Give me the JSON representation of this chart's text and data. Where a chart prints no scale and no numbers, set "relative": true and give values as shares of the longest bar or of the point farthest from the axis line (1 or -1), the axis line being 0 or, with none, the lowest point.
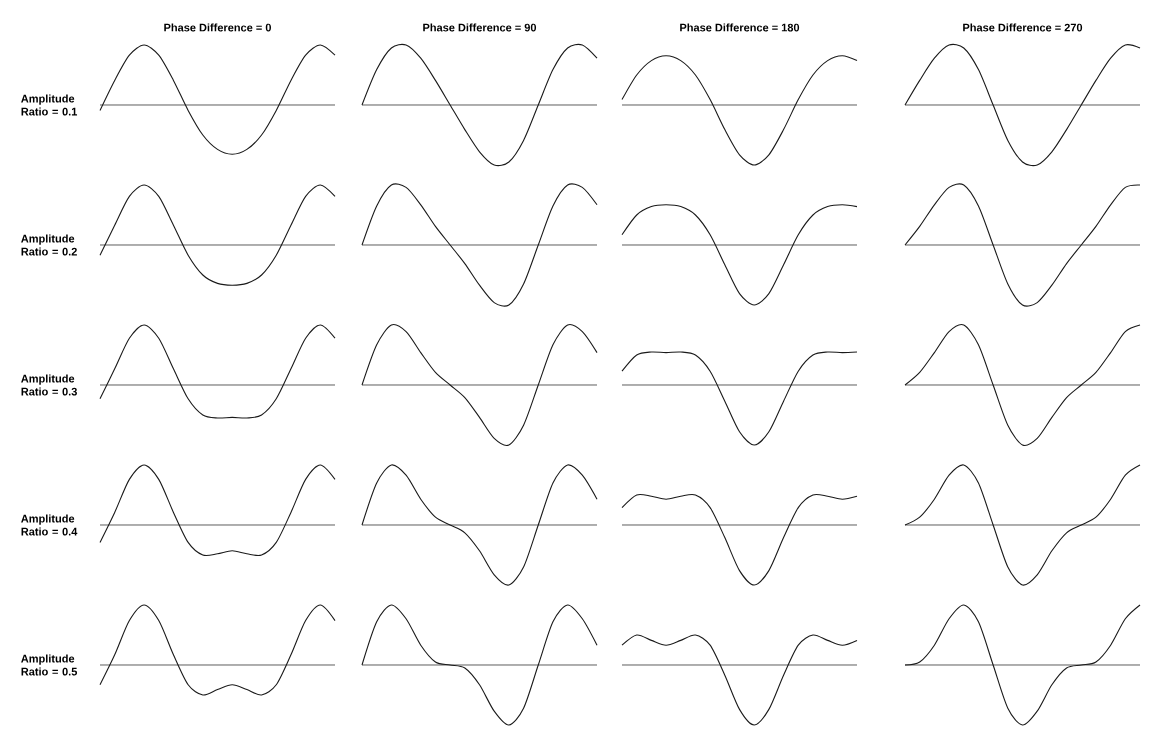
{
  "chart_data": [
    {
      "type": "line",
      "relative": true,
      "color": "#1a1a1a",
      "title": "Phase Difference = 0",
      "ylabel": "Amplitude Ratio = 0.1",
      "categories": [
        null,
        null,
        null,
        null,
        null,
        null,
        null,
        null,
        null,
        null,
        null,
        null,
        null,
        null,
        null,
        null,
        null
      ],
      "values": [
        -0.09,
        0.41,
        0.83,
        1,
        0.83,
        0.41,
        -0.09,
        -0.5,
        -0.74,
        -0.82,
        -0.74,
        -0.5,
        -0.09,
        0.41,
        0.83,
        1,
        0.83
      ]
    },
    {
      "type": "line",
      "relative": true,
      "color": "#1a1a1a",
      "title": "Phase Difference = 90",
      "categories": [
        null,
        null,
        null,
        null,
        null,
        null,
        null,
        null,
        null,
        null,
        null,
        null,
        null,
        null,
        null,
        null,
        null
      ],
      "values": [
        0,
        0.59,
        0.95,
        1,
        0.78,
        0.41,
        0,
        -0.41,
        -0.78,
        -1,
        -0.95,
        -0.59,
        0,
        0.59,
        0.95,
        1,
        0.78
      ]
    },
    {
      "type": "line",
      "relative": true,
      "color": "#1a1a1a",
      "title": "Phase Difference = 180",
      "categories": [
        null,
        null,
        null,
        null,
        null,
        null,
        null,
        null,
        null,
        null,
        null,
        null,
        null,
        null,
        null,
        null,
        null
      ],
      "values": [
        0.09,
        0.5,
        0.74,
        0.82,
        0.74,
        0.5,
        0.09,
        -0.41,
        -0.83,
        -1,
        -0.83,
        -0.41,
        0.09,
        0.5,
        0.74,
        0.82,
        0.74
      ]
    },
    {
      "type": "line",
      "relative": true,
      "color": "#1a1a1a",
      "title": "Phase Difference = 270",
      "categories": [
        null,
        null,
        null,
        null,
        null,
        null,
        null,
        null,
        null,
        null,
        null,
        null,
        null,
        null,
        null,
        null,
        null
      ],
      "values": [
        0,
        0.41,
        0.78,
        1,
        0.95,
        0.59,
        0,
        -0.59,
        -0.95,
        -1,
        -0.78,
        -0.41,
        0,
        0.41,
        0.78,
        1,
        0.95
      ]
    },
    {
      "type": "line",
      "relative": true,
      "color": "#1a1a1a",
      "ylabel": "Amplitude Ratio = 0.2",
      "categories": [
        null,
        null,
        null,
        null,
        null,
        null,
        null,
        null,
        null,
        null,
        null,
        null,
        null,
        null,
        null,
        null,
        null
      ],
      "values": [
        -0.17,
        0.33,
        0.81,
        1,
        0.81,
        0.33,
        -0.17,
        -0.5,
        -0.64,
        -0.67,
        -0.64,
        -0.5,
        -0.17,
        0.33,
        0.81,
        1,
        0.81
      ]
    },
    {
      "type": "line",
      "relative": true,
      "color": "#1a1a1a",
      "categories": [
        null,
        null,
        null,
        null,
        null,
        null,
        null,
        null,
        null,
        null,
        null,
        null,
        null,
        null,
        null,
        null,
        null
      ],
      "values": [
        0,
        0.65,
        1,
        0.96,
        0.67,
        0.31,
        0,
        -0.31,
        -0.67,
        -0.96,
        -1,
        -0.65,
        0,
        0.65,
        1,
        0.96,
        0.67
      ]
    },
    {
      "type": "line",
      "relative": true,
      "color": "#1a1a1a",
      "categories": [
        null,
        null,
        null,
        null,
        null,
        null,
        null,
        null,
        null,
        null,
        null,
        null,
        null,
        null,
        null,
        null,
        null
      ],
      "values": [
        0.17,
        0.5,
        0.64,
        0.67,
        0.64,
        0.5,
        0.17,
        -0.33,
        -0.81,
        -1,
        -0.81,
        -0.33,
        0.17,
        0.5,
        0.64,
        0.67,
        0.64
      ]
    },
    {
      "type": "line",
      "relative": true,
      "color": "#1a1a1a",
      "categories": [
        null,
        null,
        null,
        null,
        null,
        null,
        null,
        null,
        null,
        null,
        null,
        null,
        null,
        null,
        null,
        null,
        null
      ],
      "values": [
        0,
        0.31,
        0.67,
        0.96,
        1,
        0.65,
        0,
        -0.65,
        -1,
        -0.96,
        -0.67,
        -0.31,
        0,
        0.31,
        0.67,
        0.96,
        1
      ]
    },
    {
      "type": "line",
      "relative": true,
      "color": "#1a1a1a",
      "ylabel": "Amplitude Ratio = 0.3",
      "categories": [
        null,
        null,
        null,
        null,
        null,
        null,
        null,
        null,
        null,
        null,
        null,
        null,
        null,
        null,
        null,
        null,
        null
      ],
      "values": [
        -0.23,
        0.27,
        0.78,
        1,
        0.78,
        0.27,
        -0.23,
        -0.5,
        -0.55,
        -0.54,
        -0.55,
        -0.5,
        -0.23,
        0.27,
        0.78,
        1,
        0.78
      ]
    },
    {
      "type": "line",
      "relative": true,
      "color": "#1a1a1a",
      "categories": [
        null,
        null,
        null,
        null,
        null,
        null,
        null,
        null,
        null,
        null,
        null,
        null,
        null,
        null,
        null,
        null,
        null
      ],
      "values": [
        0,
        0.67,
        1,
        0.89,
        0.54,
        0.21,
        0,
        -0.21,
        -0.54,
        -0.89,
        -1,
        -0.67,
        0,
        0.67,
        1,
        0.89,
        0.54
      ]
    },
    {
      "type": "line",
      "relative": true,
      "color": "#1a1a1a",
      "categories": [
        null,
        null,
        null,
        null,
        null,
        null,
        null,
        null,
        null,
        null,
        null,
        null,
        null,
        null,
        null,
        null,
        null
      ],
      "values": [
        0.23,
        0.5,
        0.55,
        0.54,
        0.55,
        0.5,
        0.23,
        -0.27,
        -0.78,
        -1,
        -0.78,
        -0.27,
        0.23,
        0.5,
        0.55,
        0.54,
        0.55
      ]
    },
    {
      "type": "line",
      "relative": true,
      "color": "#1a1a1a",
      "categories": [
        null,
        null,
        null,
        null,
        null,
        null,
        null,
        null,
        null,
        null,
        null,
        null,
        null,
        null,
        null,
        null,
        null
      ],
      "values": [
        0,
        0.21,
        0.54,
        0.89,
        1,
        0.67,
        0,
        -0.67,
        -1,
        -0.89,
        -0.54,
        -0.21,
        0,
        0.21,
        0.54,
        0.89,
        1
      ]
    },
    {
      "type": "line",
      "relative": true,
      "color": "#1a1a1a",
      "ylabel": "Amplitude Ratio = 0.4",
      "categories": [
        null,
        null,
        null,
        null,
        null,
        null,
        null,
        null,
        null,
        null,
        null,
        null,
        null,
        null,
        null,
        null,
        null
      ],
      "values": [
        -0.29,
        0.21,
        0.76,
        1,
        0.76,
        0.21,
        -0.29,
        -0.5,
        -0.48,
        -0.43,
        -0.48,
        -0.5,
        -0.29,
        0.21,
        0.76,
        1,
        0.76
      ]
    },
    {
      "type": "line",
      "relative": true,
      "color": "#1a1a1a",
      "categories": [
        null,
        null,
        null,
        null,
        null,
        null,
        null,
        null,
        null,
        null,
        null,
        null,
        null,
        null,
        null,
        null,
        null
      ],
      "values": [
        0,
        0.7,
        1,
        0.83,
        0.43,
        0.13,
        0,
        -0.13,
        -0.43,
        -0.83,
        -1,
        -0.7,
        0,
        0.7,
        1,
        0.83,
        0.43
      ]
    },
    {
      "type": "line",
      "relative": true,
      "color": "#1a1a1a",
      "categories": [
        null,
        null,
        null,
        null,
        null,
        null,
        null,
        null,
        null,
        null,
        null,
        null,
        null,
        null,
        null,
        null,
        null
      ],
      "values": [
        0.29,
        0.5,
        0.48,
        0.43,
        0.48,
        0.5,
        0.29,
        -0.21,
        -0.76,
        -1,
        -0.76,
        -0.21,
        0.29,
        0.5,
        0.48,
        0.43,
        0.48
      ]
    },
    {
      "type": "line",
      "relative": true,
      "color": "#1a1a1a",
      "categories": [
        null,
        null,
        null,
        null,
        null,
        null,
        null,
        null,
        null,
        null,
        null,
        null,
        null,
        null,
        null,
        null,
        null
      ],
      "values": [
        0,
        0.13,
        0.43,
        0.83,
        1,
        0.7,
        0,
        -0.7,
        -1,
        -0.83,
        -0.43,
        -0.13,
        0,
        0.13,
        0.43,
        0.83,
        1
      ]
    },
    {
      "type": "line",
      "relative": true,
      "color": "#1a1a1a",
      "ylabel": "Amplitude Ratio = 0.5",
      "categories": [
        null,
        null,
        null,
        null,
        null,
        null,
        null,
        null,
        null,
        null,
        null,
        null,
        null,
        null,
        null,
        null,
        null
      ],
      "values": [
        -0.33,
        0.17,
        0.74,
        1,
        0.74,
        0.17,
        -0.33,
        -0.5,
        -0.41,
        -0.33,
        -0.41,
        -0.5,
        -0.33,
        0.17,
        0.74,
        1,
        0.74
      ]
    },
    {
      "type": "line",
      "relative": true,
      "color": "#1a1a1a",
      "categories": [
        null,
        null,
        null,
        null,
        null,
        null,
        null,
        null,
        null,
        null,
        null,
        null,
        null,
        null,
        null,
        null,
        null
      ],
      "values": [
        0,
        0.72,
        1,
        0.77,
        0.33,
        0.05,
        0,
        -0.05,
        -0.33,
        -0.77,
        -1,
        -0.72,
        0,
        0.72,
        1,
        0.77,
        0.33
      ]
    },
    {
      "type": "line",
      "relative": true,
      "color": "#1a1a1a",
      "categories": [
        null,
        null,
        null,
        null,
        null,
        null,
        null,
        null,
        null,
        null,
        null,
        null,
        null,
        null,
        null,
        null,
        null
      ],
      "values": [
        0.33,
        0.5,
        0.41,
        0.33,
        0.41,
        0.5,
        0.33,
        -0.17,
        -0.74,
        -1,
        -0.74,
        -0.17,
        0.33,
        0.5,
        0.41,
        0.33,
        0.41
      ]
    },
    {
      "type": "line",
      "relative": true,
      "color": "#1a1a1a",
      "categories": [
        null,
        null,
        null,
        null,
        null,
        null,
        null,
        null,
        null,
        null,
        null,
        null,
        null,
        null,
        null,
        null,
        null
      ],
      "values": [
        0,
        0.05,
        0.33,
        0.77,
        1,
        0.72,
        0,
        -0.72,
        -1,
        -0.77,
        -0.33,
        -0.05,
        0,
        0.05,
        0.33,
        0.77,
        1
      ]
    }
  ]
}
